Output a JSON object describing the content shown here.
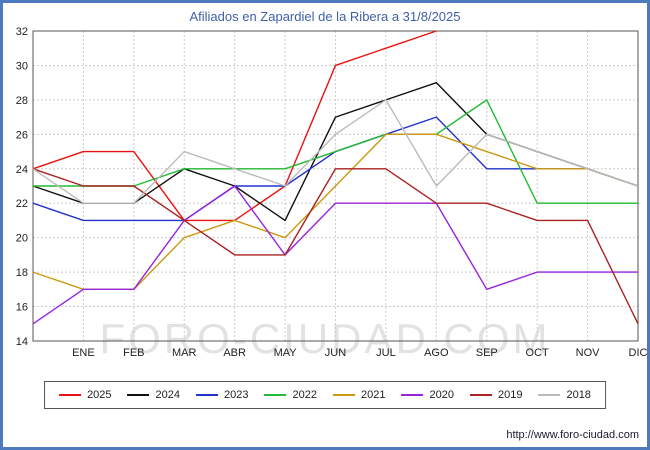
{
  "title": "Afiliados en Zapardiel de la Ribera a 31/8/2025",
  "watermark": "FORO-CIUDAD.COM",
  "footer_url": "http://www.foro-ciudad.com",
  "colors": {
    "frame": "#4d7abf",
    "title": "#4060a8",
    "grid": "#cccccc",
    "plot_border": "#555555",
    "tick_text": "#222222"
  },
  "chart_data": {
    "type": "line",
    "title": "Afiliados en Zapardiel de la Ribera a 31/8/2025",
    "xlabel": "",
    "ylabel": "",
    "categories": [
      "ENE",
      "FEB",
      "MAR",
      "ABR",
      "MAY",
      "JUN",
      "JUL",
      "AGO",
      "SEP",
      "OCT",
      "NOV",
      "DIC"
    ],
    "ylim": [
      14,
      32
    ],
    "ytick_step": 2,
    "grid": true,
    "legend_position": "bottom",
    "series": [
      {
        "name": "2025",
        "color": "#ee1111",
        "start": 24,
        "values": [
          25,
          25,
          21,
          21,
          23,
          30,
          31,
          32,
          null,
          null,
          null,
          null
        ]
      },
      {
        "name": "2024",
        "color": "#111111",
        "start": 23,
        "values": [
          22,
          22,
          24,
          23,
          21,
          27,
          28,
          29,
          26,
          25,
          24,
          23
        ]
      },
      {
        "name": "2023",
        "color": "#2233cc",
        "start": 22,
        "values": [
          21,
          21,
          21,
          23,
          23,
          25,
          26,
          27,
          24,
          24,
          24,
          23
        ]
      },
      {
        "name": "2022",
        "color": "#22bb33",
        "start": 23,
        "values": [
          23,
          23,
          24,
          24,
          24,
          25,
          26,
          26,
          28,
          22,
          22,
          22
        ]
      },
      {
        "name": "2021",
        "color": "#cc9911",
        "start": 18,
        "values": [
          17,
          17,
          20,
          21,
          20,
          23,
          26,
          26,
          25,
          24,
          24,
          23
        ]
      },
      {
        "name": "2020",
        "color": "#9922dd",
        "start": 15,
        "values": [
          17,
          17,
          21,
          23,
          19,
          22,
          22,
          22,
          17,
          18,
          18,
          18
        ]
      },
      {
        "name": "2019",
        "color": "#aa2222",
        "start": 24,
        "values": [
          23,
          23,
          21,
          19,
          19,
          24,
          24,
          22,
          22,
          21,
          21,
          15
        ]
      },
      {
        "name": "2018",
        "color": "#bbbbbb",
        "start": 24,
        "values": [
          22,
          22,
          25,
          24,
          23,
          26,
          28,
          23,
          26,
          25,
          24,
          23
        ]
      }
    ]
  }
}
